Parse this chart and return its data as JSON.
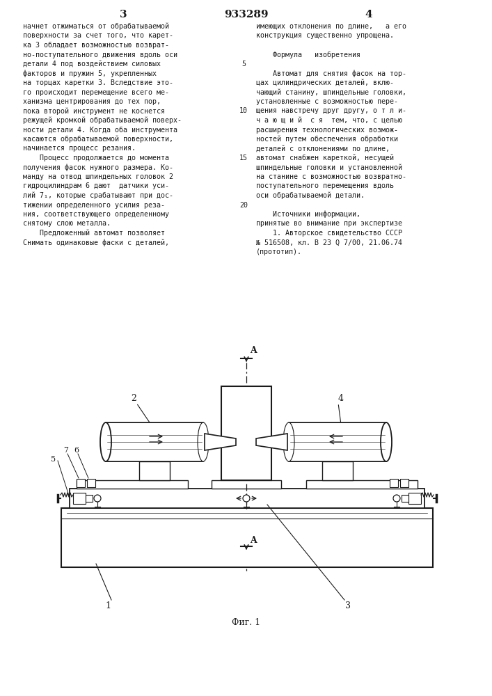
{
  "bg_color": "#ffffff",
  "text_color": "#1a1a1a",
  "page_number_left": "3",
  "page_number_center": "933289",
  "page_number_right": "4",
  "fig_caption": "Фиг. 1",
  "col1_lines": [
    "начнет отжиматься от обрабатываемой",
    "поверхности за счет того, что карет-",
    "ка 3 обладает возможностью возврат-",
    "но-поступательного движения вдоль оси",
    "детали 4 под воздействием силовых",
    "факторов и пружин 5, укрепленных",
    "на торцах каретки 3. Вследствие это-",
    "го происходит перемещение всего ме-",
    "ханизма центрирования до тех пор,",
    "пока второй инструмент не коснется",
    "режущей кромкой обрабатываемой поверх-",
    "ности детали 4. Когда оба инструмента",
    "касаются обрабатываемой поверхности,",
    "начинается процесс резания.",
    "    Процесс продолжается до момента",
    "получения фасок нужного размера. Ко-",
    "манду на отвод шпиндельных головок 2",
    "гидроцилиндрам 6 дают  датчики уси-",
    "лий 7₁, которые срабатывают при дос-",
    "тижении определенного усилия реза-",
    "ния, соответствующего определенному",
    "снятому слою металла.",
    "    Предложенный автомат позволяет",
    "Снимать одинаковые фаски с деталей,"
  ],
  "col2_lines": [
    "имеющих отклонения по длине,   а его",
    "конструкция существенно упрощена.",
    "",
    "    Формула   изобретения",
    "",
    "    Автомат для снятия фасок на тор-",
    "цах цилиндрических деталей, вклю-",
    "чающий станину, шпиндельные головки,",
    "установленные с возможностью пере-",
    "щения навстречу друг другу, о т л и-",
    "ч а ю щ и й  с я  тем, что, с целью",
    "расширения технологических возмож-",
    "ностей путем обеспечения обработки",
    "деталей с отклонениями по длине,",
    "автомат снабжен кареткой, несущей",
    "шпиндельные головки и установленной",
    "на станине с возможностью возвратно-",
    "поступательного перемещения вдоль",
    "оси обрабатываемой детали.",
    "",
    "    Источники информации,",
    "принятые во внимание при экспертизе",
    "    1. Авторское свидетельство СССР",
    "№ 516508, кл. В 23 Q 7/00, 21.06.74",
    "(прототип)."
  ]
}
